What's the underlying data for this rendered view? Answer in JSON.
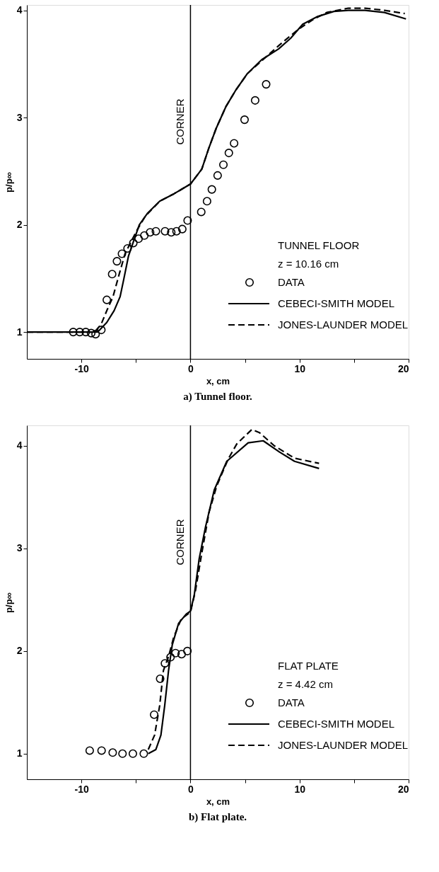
{
  "chart_data": [
    {
      "type": "line",
      "title": "a)  Tunnel floor.",
      "xlabel": "x, cm",
      "ylabel": "p/p∞",
      "legend_title": "TUNNEL FLOOR\nz = 10.16 cm",
      "legend": "bottom right",
      "xlim": [
        -15,
        20
      ],
      "xticks": [
        -10,
        {
          "value": -5,
          "label": null
        },
        0,
        {
          "value": 5,
          "label": null
        },
        10,
        {
          "value": 15,
          "label": null
        },
        20
      ],
      "ylim": [
        0.75,
        4.05
      ],
      "yticks": [
        1,
        2,
        3,
        4
      ],
      "grid": false,
      "ref_lines": [
        {
          "axis": "x",
          "value": 0,
          "label": "CORNER"
        }
      ],
      "series": [
        {
          "name": "DATA",
          "type": "scatter",
          "marker": "circle",
          "color": "#000000",
          "x": [
            -10.75,
            -10.15,
            -9.6,
            -9.1,
            -8.7,
            -8.17,
            -7.67,
            -7.18,
            -6.74,
            -6.28,
            -5.77,
            -5.24,
            -4.76,
            -4.23,
            -3.7,
            -3.17,
            -2.33,
            -1.76,
            -1.28,
            -0.75,
            -0.26,
            0.99,
            1.52,
            1.96,
            2.49,
            3.02,
            3.52,
            4.0,
            4.96,
            5.93,
            6.94
          ],
          "values": [
            1.0,
            1.0,
            1.0,
            0.99,
            0.98,
            1.02,
            1.3,
            1.54,
            1.66,
            1.73,
            1.78,
            1.83,
            1.87,
            1.9,
            1.93,
            1.94,
            1.94,
            1.93,
            1.94,
            1.96,
            2.04,
            2.12,
            2.22,
            2.33,
            2.46,
            2.56,
            2.67,
            2.76,
            2.98,
            3.16,
            3.31
          ]
        },
        {
          "name": "CEBECI-SMITH MODEL",
          "line_style": "solid",
          "color": "#000000",
          "x": [
            -15,
            -8.5,
            -7.67,
            -7.0,
            -6.45,
            -6.12,
            -5.68,
            -5.24,
            -4.69,
            -3.92,
            -2.82,
            -1.5,
            0,
            0.6,
            1.04,
            1.7,
            2.36,
            3.24,
            4.12,
            5.22,
            6.54,
            8.08,
            9.19,
            10.29,
            11.6,
            13.15,
            14.47,
            16.0,
            17.78,
            19.76
          ],
          "values": [
            1.0,
            1.0,
            1.09,
            1.2,
            1.33,
            1.49,
            1.71,
            1.84,
            2.0,
            2.11,
            2.22,
            2.29,
            2.38,
            2.46,
            2.52,
            2.72,
            2.9,
            3.1,
            3.25,
            3.41,
            3.54,
            3.64,
            3.74,
            3.87,
            3.94,
            3.99,
            4.0,
            4.0,
            3.98,
            3.92
          ]
        },
        {
          "name": "JONES-LAUNDER MODEL",
          "line_style": "dashed",
          "color": "#000000",
          "x": [
            -15,
            -8.8,
            -8.2,
            -7.67,
            -7.1,
            -6.56,
            -6.0,
            -5.46,
            -4.9,
            -4.14,
            -2.82,
            -1.5,
            0,
            0.6,
            1.04,
            1.7,
            2.36,
            3.24,
            4.12,
            5.22,
            6.76,
            8.08,
            9.85,
            11.17,
            12.49,
            14.47,
            16.0,
            17.78,
            19.65
          ],
          "values": [
            1.0,
            1.0,
            1.07,
            1.2,
            1.33,
            1.53,
            1.73,
            1.84,
            1.95,
            2.08,
            2.22,
            2.29,
            2.38,
            2.46,
            2.52,
            2.72,
            2.9,
            3.1,
            3.25,
            3.41,
            3.55,
            3.67,
            3.82,
            3.91,
            3.98,
            4.02,
            4.02,
            4.0,
            3.97
          ]
        }
      ]
    },
    {
      "type": "line",
      "title": "b)  Flat plate.",
      "xlabel": "x, cm",
      "ylabel": "p/p∞",
      "legend_title": "FLAT PLATE\nz = 4.42 cm",
      "legend": "bottom right",
      "xlim": [
        -15,
        20
      ],
      "xticks": [
        -10,
        {
          "value": -5,
          "label": null
        },
        0,
        {
          "value": 5,
          "label": null
        },
        10,
        {
          "value": 15,
          "label": null
        },
        20
      ],
      "ylim": [
        0.75,
        4.2
      ],
      "yticks": [
        1,
        2,
        3,
        4
      ],
      "grid": false,
      "ref_lines": [
        {
          "axis": "x",
          "value": 0,
          "label": "CORNER"
        }
      ],
      "series": [
        {
          "name": "DATA",
          "type": "scatter",
          "marker": "circle",
          "color": "#000000",
          "x": [
            -9.24,
            -8.15,
            -7.13,
            -6.23,
            -5.28,
            -4.28,
            -3.33,
            -2.78,
            -2.34,
            -1.83,
            -1.37,
            -0.81,
            -0.28
          ],
          "values": [
            1.03,
            1.03,
            1.01,
            1.0,
            1.0,
            1.0,
            1.38,
            1.73,
            1.88,
            1.94,
            1.98,
            1.97,
            2.0
          ]
        },
        {
          "name": "CEBECI-SMITH MODEL",
          "line_style": "solid",
          "color": "#000000",
          "x": [
            -3.87,
            -3.17,
            -2.71,
            -2.36,
            -2.01,
            -1.67,
            -1.09,
            -0.39,
            0,
            0.34,
            0.8,
            1.38,
            2.18,
            3.33,
            5.29,
            6.67,
            8.16,
            9.54,
            11.79
          ],
          "values": [
            1.0,
            1.04,
            1.18,
            1.47,
            1.81,
            2.06,
            2.27,
            2.36,
            2.39,
            2.54,
            2.9,
            3.21,
            3.57,
            3.85,
            4.03,
            4.05,
            3.94,
            3.85,
            3.78
          ]
        },
        {
          "name": "JONES-LAUNDER MODEL",
          "line_style": "dashed",
          "color": "#000000",
          "x": [
            -3.87,
            -3.29,
            -2.82,
            -2.48,
            -2.0,
            -1.55,
            -0.86,
            0,
            0.46,
            1.03,
            1.72,
            2.41,
            3.45,
            4.25,
            5.63,
            6.32,
            7.7,
            9.54,
            11.79
          ],
          "values": [
            1.04,
            1.18,
            1.47,
            1.81,
            1.95,
            2.13,
            2.31,
            2.38,
            2.59,
            2.95,
            3.36,
            3.61,
            3.87,
            4.02,
            4.16,
            4.13,
            4.0,
            3.88,
            3.83
          ]
        }
      ]
    }
  ]
}
